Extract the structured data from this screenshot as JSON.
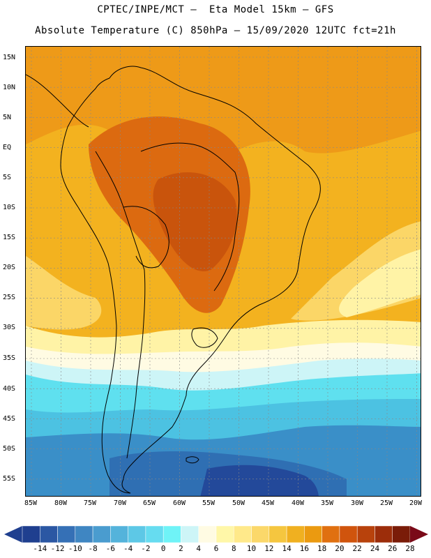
{
  "header": {
    "title_line1": "CPTEC/INPE/MCT –  Eta Model 15km – GFS",
    "title_line2": "Absolute Temperature (C) 850hPa – 15/09/2020 12UTC fct=21h"
  },
  "map": {
    "region": "South America",
    "variable": "Absolute Temperature 850hPa",
    "lat_labels": [
      "15N",
      "10N",
      "5N",
      "EQ",
      "5S",
      "10S",
      "15S",
      "20S",
      "25S",
      "30S",
      "35S",
      "40S",
      "45S",
      "50S",
      "55S"
    ],
    "lon_labels": [
      "85W",
      "80W",
      "75W",
      "70W",
      "65W",
      "60W",
      "55W",
      "50W",
      "45W",
      "40W",
      "35W",
      "30W",
      "25W",
      "20W"
    ]
  },
  "colorbar": {
    "ticks": [
      "-14",
      "-12",
      "-10",
      "-8",
      "-6",
      "-4",
      "-2",
      "0",
      "2",
      "4",
      "6",
      "8",
      "10",
      "12",
      "14",
      "16",
      "18",
      "20",
      "22",
      "24",
      "26",
      "28"
    ],
    "colors": [
      "#1f3f8f",
      "#2b57a3",
      "#3570b6",
      "#3f86c2",
      "#4a9ccf",
      "#54b3db",
      "#5dc8e6",
      "#66dcf0",
      "#6ff3f7",
      "#cdf5f7",
      "#fffbe3",
      "#fff7a8",
      "#ffe98a",
      "#fbd86a",
      "#f5c63f",
      "#f0b020",
      "#eb9a10",
      "#e07010",
      "#d0540d",
      "#b8420c",
      "#9c2d0a",
      "#7a1c08"
    ],
    "left_arrow_color": "#1f3f8f",
    "right_arrow_color": "#7a0a18"
  },
  "palette": {
    "warm_core": "#dc6a10",
    "hot_core": "#c9540c",
    "orange": "#ee9a18",
    "amber": "#f3b21f",
    "yellow": "#fbd667",
    "pale_yellow": "#fff3a6",
    "cream": "#fffbe3",
    "light_cyan": "#cdf5f7",
    "cyan": "#5fe0ef",
    "light_blue": "#4cc2e2",
    "mid_blue": "#3a8fc8",
    "blue": "#2f6fb3",
    "deep_blue": "#23499a",
    "land_outline": "#000000",
    "grid": "#888888"
  }
}
